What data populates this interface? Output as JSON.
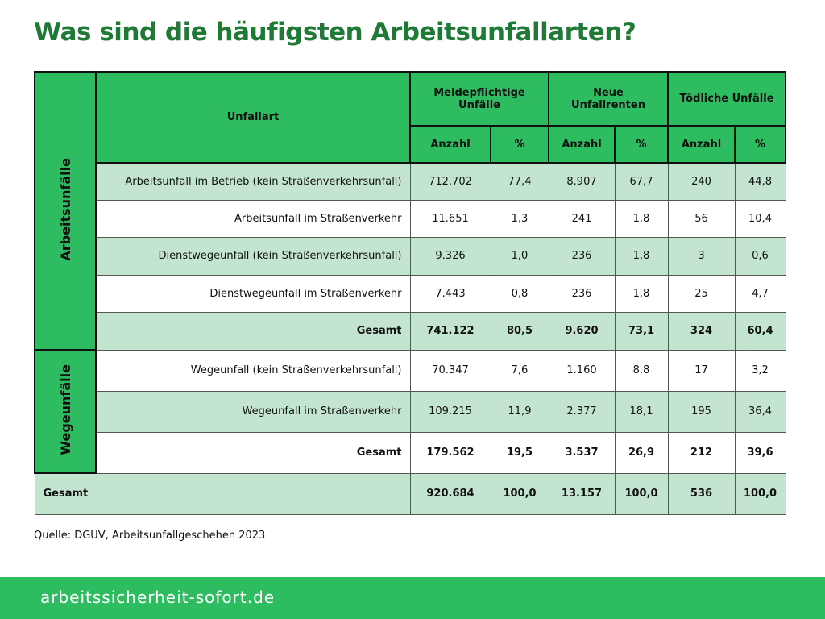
{
  "title": "Was sind die häufigsten Arbeitsunfallarten?",
  "table": {
    "header": {
      "category": "Unfallart",
      "groups": [
        "Meldepflichtige Unfälle",
        "Neue Unfallrenten",
        "Tödliche Unfälle"
      ],
      "subheaders": [
        "Anzahl",
        "%",
        "Anzahl",
        "%",
        "Anzahl",
        "%"
      ]
    },
    "sections": [
      {
        "label": "Arbeitsunfälle",
        "rows": [
          {
            "label": "Arbeitsunfall im Betrieb (kein Straßenverkehrsunfall)",
            "values": [
              "712.702",
              "77,4",
              "8.907",
              "67,7",
              "240",
              "44,8"
            ]
          },
          {
            "label": "Arbeitsunfall im Straßenverkehr",
            "values": [
              "11.651",
              "1,3",
              "241",
              "1,8",
              "56",
              "10,4"
            ]
          },
          {
            "label": "Dienstwegeunfall (kein Straßenverkehrsunfall)",
            "values": [
              "9.326",
              "1,0",
              "236",
              "1,8",
              "3",
              "0,6"
            ]
          },
          {
            "label": "Dienstwegeunfall im Straßenverkehr",
            "values": [
              "7.443",
              "0,8",
              "236",
              "1,8",
              "25",
              "4,7"
            ]
          },
          {
            "label": "Gesamt",
            "values": [
              "741.122",
              "80,5",
              "9.620",
              "73,1",
              "324",
              "60,4"
            ]
          }
        ]
      },
      {
        "label": "Wegeunfälle",
        "rows": [
          {
            "label": "Wegeunfall (kein Straßenverkehrsunfall)",
            "values": [
              "70.347",
              "7,6",
              "1.160",
              "8,8",
              "17",
              "3,2"
            ]
          },
          {
            "label": "Wegeunfall im Straßenverkehr",
            "values": [
              "109.215",
              "11,9",
              "2.377",
              "18,1",
              "195",
              "36,4"
            ]
          },
          {
            "label": "Gesamt",
            "values": [
              "179.562",
              "19,5",
              "3.537",
              "26,9",
              "212",
              "39,6"
            ]
          }
        ]
      }
    ],
    "total": {
      "label": "Gesamt",
      "values": [
        "920.684",
        "100,0",
        "13.157",
        "100,0",
        "536",
        "100,0"
      ]
    }
  },
  "source": "Quelle: DGUV, Arbeitsunfallgeschehen 2023",
  "footer": "arbeitssicherheit-sofort.de"
}
